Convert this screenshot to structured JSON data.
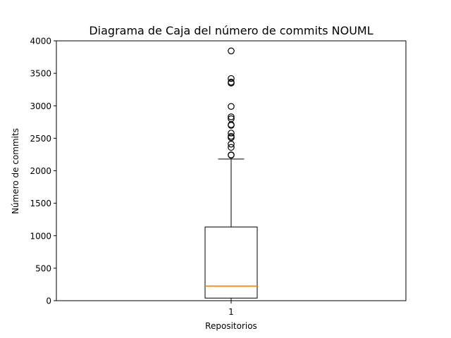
{
  "chart_data": {
    "type": "box",
    "title": "Diagrama de Caja del número de commits NOUML",
    "xlabel": "Repositorios",
    "ylabel": "Número de commits",
    "categories": [
      "1"
    ],
    "ylim": [
      0,
      4000
    ],
    "yticks": [
      0,
      500,
      1000,
      1500,
      2000,
      2500,
      3000,
      3500,
      4000
    ],
    "box": {
      "whisker_low": 0,
      "q1": 40,
      "median": 225,
      "q3": 1135,
      "whisker_high": 2180,
      "outliers": [
        2240,
        2245,
        2360,
        2410,
        2510,
        2530,
        2580,
        2700,
        2710,
        2800,
        2830,
        2990,
        3350,
        3365,
        3420,
        3845
      ]
    },
    "colors": {
      "box_edge": "#000000",
      "median": "#ff7f0e",
      "outlier_edge": "#000000"
    },
    "grid": false
  }
}
